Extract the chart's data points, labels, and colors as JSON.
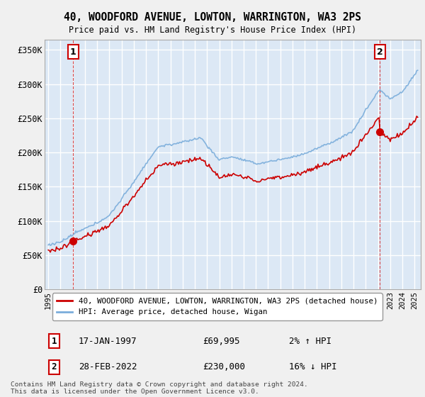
{
  "title": "40, WOODFORD AVENUE, LOWTON, WARRINGTON, WA3 2PS",
  "subtitle": "Price paid vs. HM Land Registry's House Price Index (HPI)",
  "ylabel_ticks": [
    "£0",
    "£50K",
    "£100K",
    "£150K",
    "£200K",
    "£250K",
    "£300K",
    "£350K"
  ],
  "ytick_values": [
    0,
    50000,
    100000,
    150000,
    200000,
    250000,
    300000,
    350000
  ],
  "ylim": [
    0,
    365000
  ],
  "xlim_start": 1994.7,
  "xlim_end": 2025.5,
  "sale1_x": 1997.04,
  "sale1_y": 69995,
  "sale1_label": "1",
  "sale1_date": "17-JAN-1997",
  "sale1_price": "£69,995",
  "sale1_hpi": "2% ↑ HPI",
  "sale2_x": 2022.16,
  "sale2_y": 230000,
  "sale2_label": "2",
  "sale2_date": "28-FEB-2022",
  "sale2_price": "£230,000",
  "sale2_hpi": "16% ↓ HPI",
  "legend_line1": "40, WOODFORD AVENUE, LOWTON, WARRINGTON, WA3 2PS (detached house)",
  "legend_line2": "HPI: Average price, detached house, Wigan",
  "footer": "Contains HM Land Registry data © Crown copyright and database right 2024.\nThis data is licensed under the Open Government Licence v3.0.",
  "line_color": "#cc0000",
  "hpi_color": "#7aaddb",
  "bg_color": "#dce8f5",
  "plot_bg": "#dce8f5",
  "grid_color": "#ffffff",
  "fig_bg": "#f0f0f0"
}
